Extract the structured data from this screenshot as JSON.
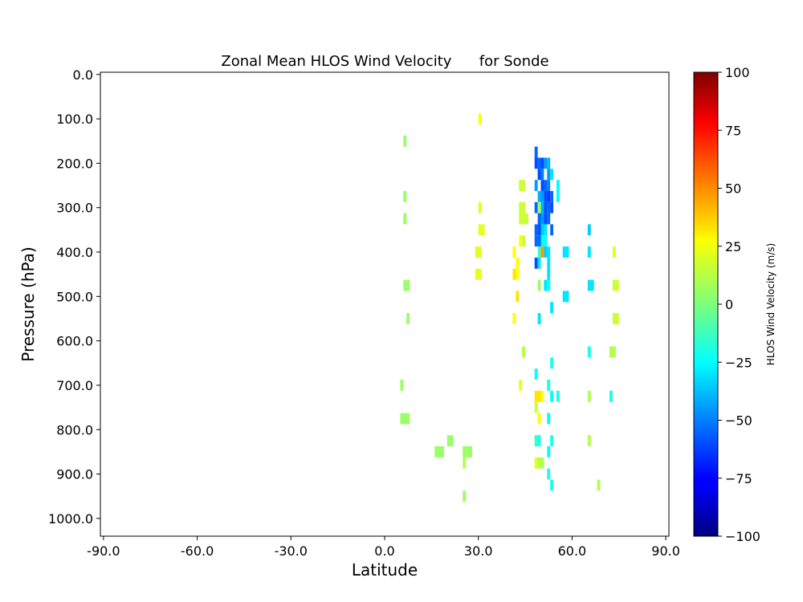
{
  "chart_data": {
    "type": "heatmap",
    "title": "Zonal Mean HLOS Wind Velocity      for Sonde",
    "xlabel": "Latitude",
    "ylabel": "Pressure (hPa)",
    "xlim": [
      -91,
      91
    ],
    "ylim": [
      1040,
      -5
    ],
    "x_ticks": [
      -90,
      -60,
      -30,
      0,
      30,
      60,
      90
    ],
    "x_tick_labels": [
      "-90.0",
      "-60.0",
      "-30.0",
      "0.0",
      "30.0",
      "60.0",
      "90.0"
    ],
    "y_ticks": [
      0,
      100,
      200,
      300,
      400,
      500,
      600,
      700,
      800,
      900,
      1000
    ],
    "y_tick_labels": [
      "0.0",
      "100.0",
      "200.0",
      "300.0",
      "400.0",
      "500.0",
      "600.0",
      "700.0",
      "800.0",
      "900.0",
      "1000.0"
    ],
    "cell_width_deg": 1,
    "cell_height_hpa": 25,
    "colorbar": {
      "label": "HLOS Wind Velocity (m/s)",
      "vmin": -100,
      "vmax": 100,
      "ticks": [
        -100,
        -75,
        -50,
        -25,
        0,
        25,
        50,
        75,
        100
      ],
      "tick_labels": [
        "−100",
        "−75",
        "−50",
        "−25",
        "0",
        "25",
        "50",
        "75",
        "100"
      ],
      "colormap": "jet"
    },
    "cells": [
      {
        "lat": 30,
        "p": 100,
        "v": 25
      },
      {
        "lat": 6,
        "p": 150,
        "v": 5
      },
      {
        "lat": 48,
        "p": 175,
        "v": -55
      },
      {
        "lat": 48,
        "p": 200,
        "v": -60
      },
      {
        "lat": 49,
        "p": 200,
        "v": -55
      },
      {
        "lat": 50,
        "p": 200,
        "v": -60
      },
      {
        "lat": 51,
        "p": 200,
        "v": -45
      },
      {
        "lat": 52,
        "p": 200,
        "v": -40
      },
      {
        "lat": 49,
        "p": 225,
        "v": -60
      },
      {
        "lat": 50,
        "p": 225,
        "v": -50
      },
      {
        "lat": 52,
        "p": 225,
        "v": -45
      },
      {
        "lat": 53,
        "p": 225,
        "v": -30
      },
      {
        "lat": 43,
        "p": 250,
        "v": 15
      },
      {
        "lat": 44,
        "p": 250,
        "v": 15
      },
      {
        "lat": 48,
        "p": 250,
        "v": -45
      },
      {
        "lat": 50,
        "p": 250,
        "v": -60
      },
      {
        "lat": 51,
        "p": 250,
        "v": -55
      },
      {
        "lat": 52,
        "p": 250,
        "v": -50
      },
      {
        "lat": 55,
        "p": 250,
        "v": -25
      },
      {
        "lat": 6,
        "p": 275,
        "v": 5
      },
      {
        "lat": 49,
        "p": 275,
        "v": -40
      },
      {
        "lat": 50,
        "p": 275,
        "v": -45
      },
      {
        "lat": 51,
        "p": 275,
        "v": -60
      },
      {
        "lat": 52,
        "p": 275,
        "v": -65
      },
      {
        "lat": 53,
        "p": 275,
        "v": -55
      },
      {
        "lat": 55,
        "p": 275,
        "v": -25
      },
      {
        "lat": 30,
        "p": 300,
        "v": 20
      },
      {
        "lat": 43,
        "p": 300,
        "v": 15
      },
      {
        "lat": 44,
        "p": 300,
        "v": 15
      },
      {
        "lat": 48,
        "p": 300,
        "v": -55
      },
      {
        "lat": 49,
        "p": 300,
        "v": 10
      },
      {
        "lat": 50,
        "p": 300,
        "v": -40
      },
      {
        "lat": 51,
        "p": 300,
        "v": -60
      },
      {
        "lat": 52,
        "p": 300,
        "v": -55
      },
      {
        "lat": 53,
        "p": 300,
        "v": -60
      },
      {
        "lat": 6,
        "p": 325,
        "v": 5
      },
      {
        "lat": 43,
        "p": 325,
        "v": 15
      },
      {
        "lat": 44,
        "p": 325,
        "v": 15
      },
      {
        "lat": 45,
        "p": 325,
        "v": 15
      },
      {
        "lat": 49,
        "p": 325,
        "v": -55
      },
      {
        "lat": 50,
        "p": 325,
        "v": -45
      },
      {
        "lat": 51,
        "p": 325,
        "v": -60
      },
      {
        "lat": 52,
        "p": 325,
        "v": -55
      },
      {
        "lat": 30,
        "p": 350,
        "v": 20
      },
      {
        "lat": 31,
        "p": 350,
        "v": 20
      },
      {
        "lat": 48,
        "p": 350,
        "v": -55
      },
      {
        "lat": 49,
        "p": 350,
        "v": -60
      },
      {
        "lat": 50,
        "p": 350,
        "v": -35
      },
      {
        "lat": 51,
        "p": 350,
        "v": -30
      },
      {
        "lat": 53,
        "p": 350,
        "v": -55
      },
      {
        "lat": 65,
        "p": 350,
        "v": -35
      },
      {
        "lat": 43,
        "p": 375,
        "v": 25
      },
      {
        "lat": 44,
        "p": 375,
        "v": 15
      },
      {
        "lat": 48,
        "p": 375,
        "v": -55
      },
      {
        "lat": 49,
        "p": 375,
        "v": -55
      },
      {
        "lat": 50,
        "p": 375,
        "v": -25
      },
      {
        "lat": 51,
        "p": 375,
        "v": -25
      },
      {
        "lat": 29,
        "p": 400,
        "v": 20
      },
      {
        "lat": 30,
        "p": 400,
        "v": 20
      },
      {
        "lat": 41,
        "p": 400,
        "v": 25
      },
      {
        "lat": 49,
        "p": 400,
        "v": -15
      },
      {
        "lat": 50,
        "p": 400,
        "v": 45
      },
      {
        "lat": 51,
        "p": 400,
        "v": -35
      },
      {
        "lat": 52,
        "p": 400,
        "v": -30
      },
      {
        "lat": 57,
        "p": 400,
        "v": -30
      },
      {
        "lat": 58,
        "p": 400,
        "v": -30
      },
      {
        "lat": 65,
        "p": 400,
        "v": -30
      },
      {
        "lat": 73,
        "p": 400,
        "v": 20
      },
      {
        "lat": 42,
        "p": 425,
        "v": 25
      },
      {
        "lat": 48,
        "p": 425,
        "v": -60
      },
      {
        "lat": 49,
        "p": 425,
        "v": -30
      },
      {
        "lat": 52,
        "p": 425,
        "v": -30
      },
      {
        "lat": 29,
        "p": 450,
        "v": 20
      },
      {
        "lat": 30,
        "p": 450,
        "v": 20
      },
      {
        "lat": 41,
        "p": 450,
        "v": 30
      },
      {
        "lat": 42,
        "p": 450,
        "v": 25
      },
      {
        "lat": 52,
        "p": 450,
        "v": -30
      },
      {
        "lat": 6,
        "p": 475,
        "v": 5
      },
      {
        "lat": 7,
        "p": 475,
        "v": 5
      },
      {
        "lat": 49,
        "p": 475,
        "v": 5
      },
      {
        "lat": 51,
        "p": 475,
        "v": -30
      },
      {
        "lat": 52,
        "p": 475,
        "v": -25
      },
      {
        "lat": 65,
        "p": 475,
        "v": -30
      },
      {
        "lat": 66,
        "p": 475,
        "v": -30
      },
      {
        "lat": 73,
        "p": 475,
        "v": 15
      },
      {
        "lat": 74,
        "p": 475,
        "v": 15
      },
      {
        "lat": 42,
        "p": 500,
        "v": 30
      },
      {
        "lat": 57,
        "p": 500,
        "v": -30
      },
      {
        "lat": 58,
        "p": 500,
        "v": -30
      },
      {
        "lat": 53,
        "p": 525,
        "v": -30
      },
      {
        "lat": 7,
        "p": 550,
        "v": 5
      },
      {
        "lat": 41,
        "p": 550,
        "v": 25
      },
      {
        "lat": 49,
        "p": 550,
        "v": -30
      },
      {
        "lat": 73,
        "p": 550,
        "v": 15
      },
      {
        "lat": 74,
        "p": 550,
        "v": 15
      },
      {
        "lat": 44,
        "p": 625,
        "v": 10
      },
      {
        "lat": 65,
        "p": 625,
        "v": -20
      },
      {
        "lat": 72,
        "p": 625,
        "v": 10
      },
      {
        "lat": 73,
        "p": 625,
        "v": 10
      },
      {
        "lat": 53,
        "p": 650,
        "v": -20
      },
      {
        "lat": 48,
        "p": 675,
        "v": -25
      },
      {
        "lat": 5,
        "p": 700,
        "v": 5
      },
      {
        "lat": 43,
        "p": 700,
        "v": 20
      },
      {
        "lat": 52,
        "p": 700,
        "v": -20
      },
      {
        "lat": 48,
        "p": 725,
        "v": 30
      },
      {
        "lat": 49,
        "p": 725,
        "v": 30
      },
      {
        "lat": 50,
        "p": 725,
        "v": 25
      },
      {
        "lat": 53,
        "p": 725,
        "v": -25
      },
      {
        "lat": 55,
        "p": 725,
        "v": -20
      },
      {
        "lat": 65,
        "p": 725,
        "v": 10
      },
      {
        "lat": 72,
        "p": 725,
        "v": -20
      },
      {
        "lat": 48,
        "p": 750,
        "v": 15
      },
      {
        "lat": 5,
        "p": 775,
        "v": 5
      },
      {
        "lat": 6,
        "p": 775,
        "v": 5
      },
      {
        "lat": 7,
        "p": 775,
        "v": 5
      },
      {
        "lat": 49,
        "p": 775,
        "v": 25
      },
      {
        "lat": 52,
        "p": 775,
        "v": -25
      },
      {
        "lat": 48,
        "p": 825,
        "v": -15
      },
      {
        "lat": 20,
        "p": 825,
        "v": 5
      },
      {
        "lat": 21,
        "p": 825,
        "v": 5
      },
      {
        "lat": 49,
        "p": 825,
        "v": -20
      },
      {
        "lat": 53,
        "p": 825,
        "v": -20
      },
      {
        "lat": 65,
        "p": 825,
        "v": 10
      },
      {
        "lat": 16,
        "p": 850,
        "v": 5
      },
      {
        "lat": 17,
        "p": 850,
        "v": 5
      },
      {
        "lat": 18,
        "p": 850,
        "v": 5
      },
      {
        "lat": 25,
        "p": 850,
        "v": 5
      },
      {
        "lat": 26,
        "p": 850,
        "v": 5
      },
      {
        "lat": 27,
        "p": 850,
        "v": 5
      },
      {
        "lat": 52,
        "p": 850,
        "v": -25
      },
      {
        "lat": 25,
        "p": 875,
        "v": 10
      },
      {
        "lat": 48,
        "p": 875,
        "v": 20
      },
      {
        "lat": 49,
        "p": 875,
        "v": 10
      },
      {
        "lat": 50,
        "p": 875,
        "v": 10
      },
      {
        "lat": 52,
        "p": 900,
        "v": -20
      },
      {
        "lat": 53,
        "p": 925,
        "v": -20
      },
      {
        "lat": 68,
        "p": 925,
        "v": 10
      },
      {
        "lat": 25,
        "p": 950,
        "v": 5
      }
    ]
  }
}
